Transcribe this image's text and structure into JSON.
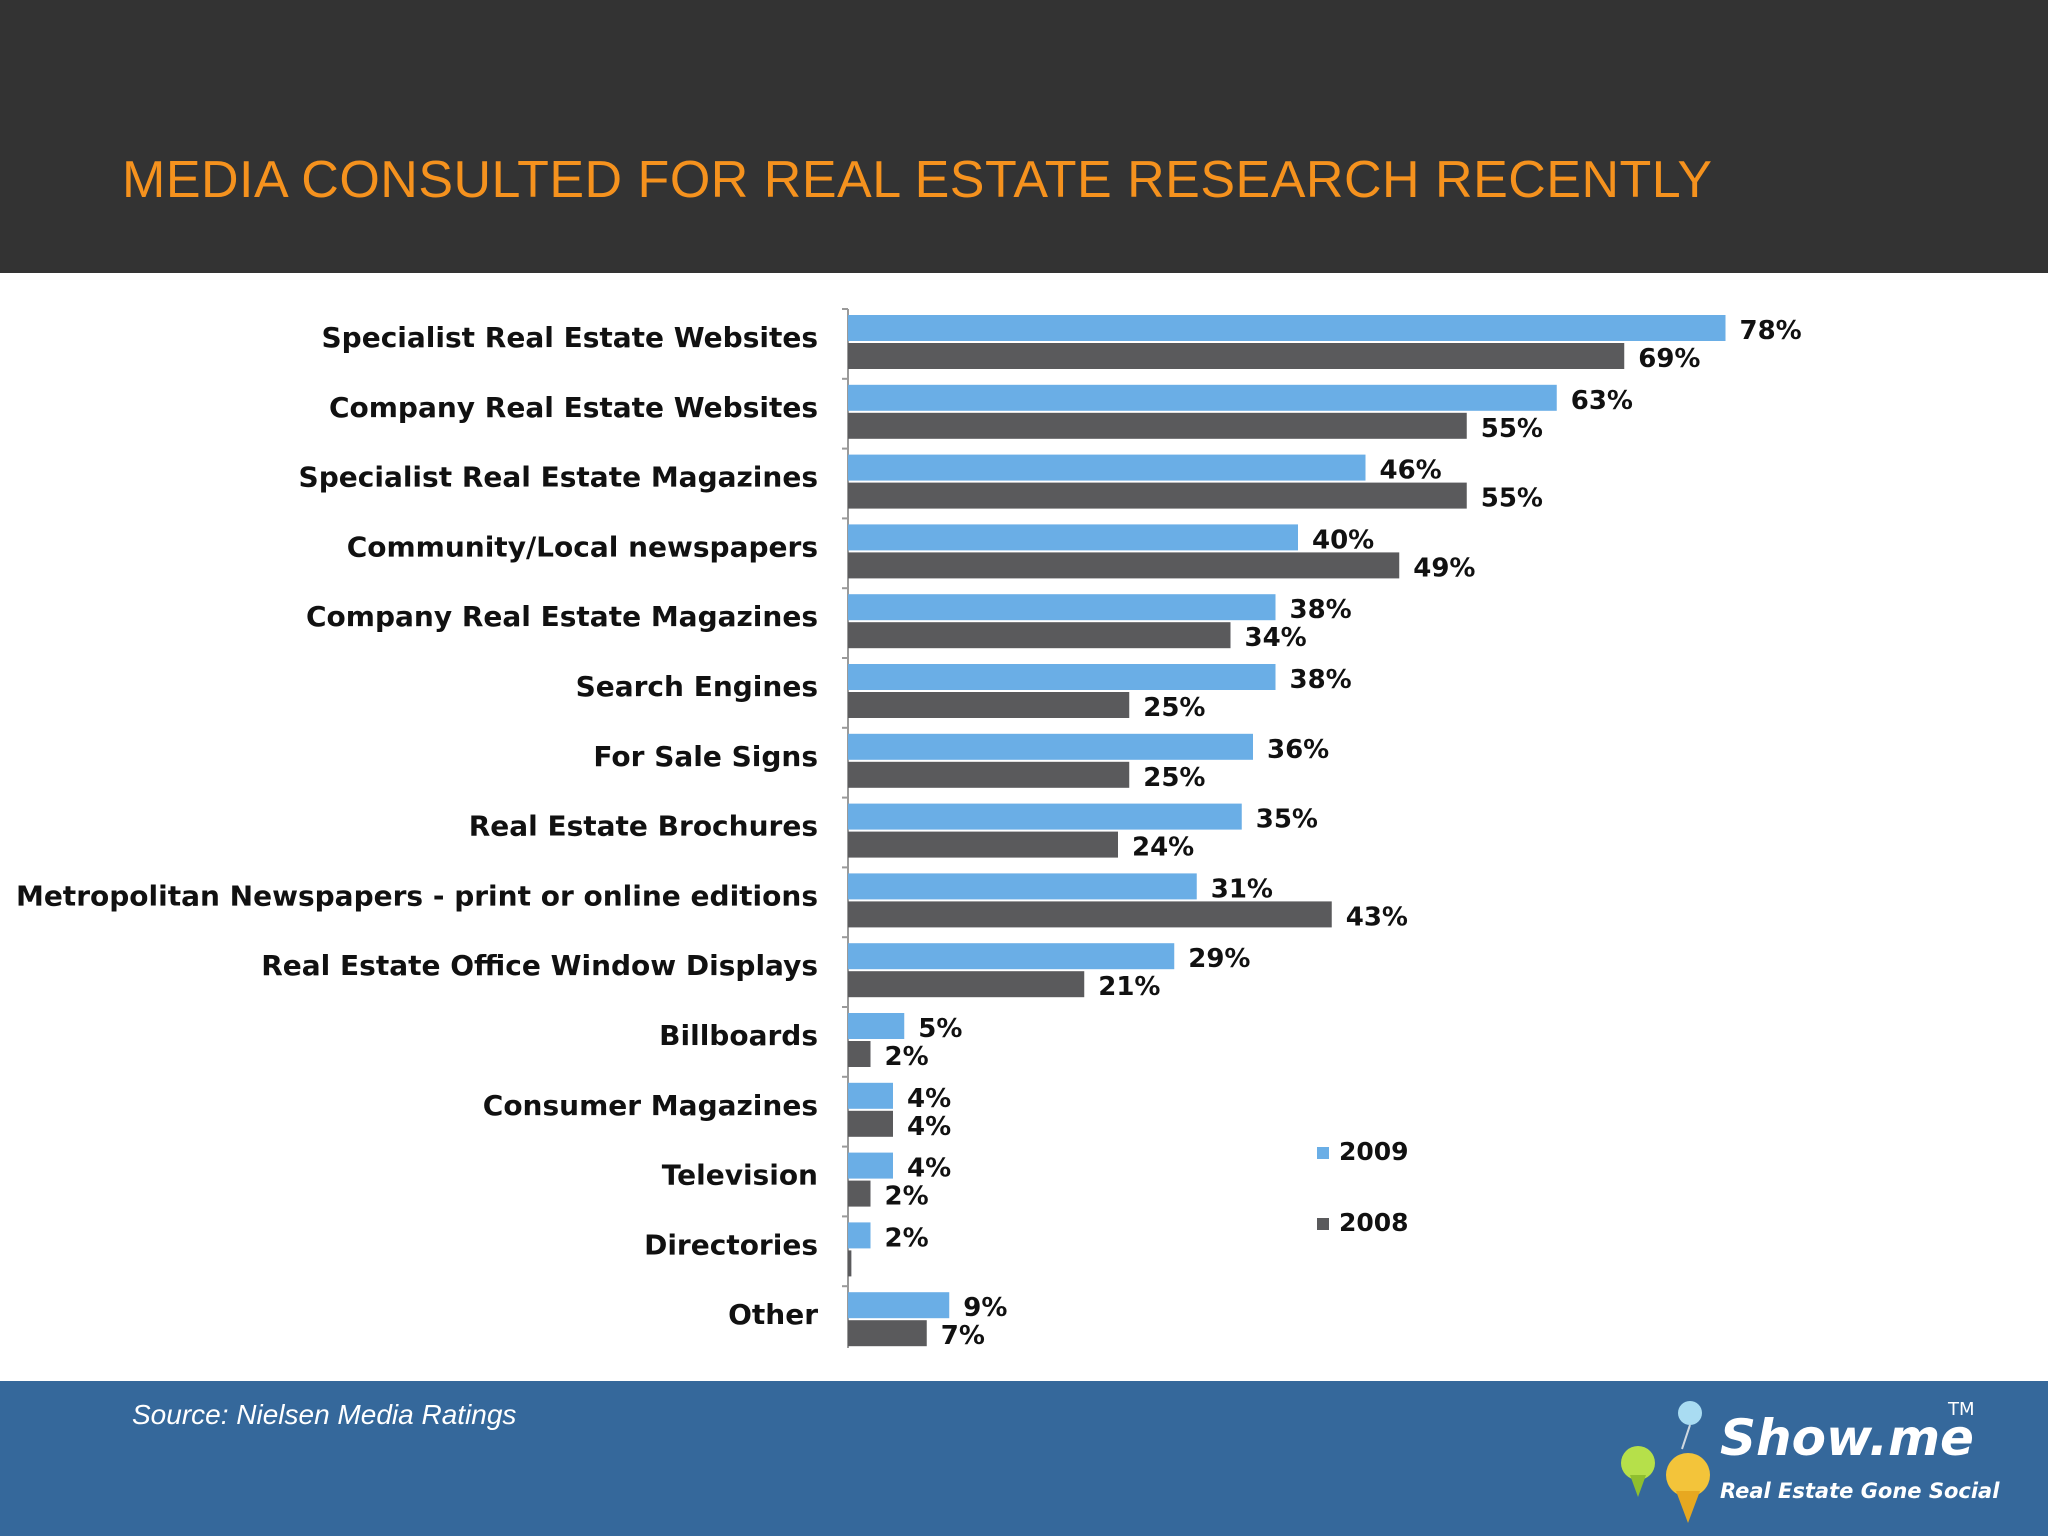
{
  "slide": {
    "title": "MEDIA CONSULTED FOR REAL ESTATE RESEARCH RECENTLY",
    "source": "Source: Nielsen Media Ratings"
  },
  "logo": {
    "name": "Show.me",
    "tagline": "Real Estate Gone Social",
    "trademark": "TM"
  },
  "colors": {
    "header_bg": "#333333",
    "title": "#f5921e",
    "footer_bg": "#35689b",
    "series_2009": "#6aaee6",
    "series_2008": "#5a5a5c"
  },
  "chart_data": {
    "type": "bar",
    "orientation": "horizontal",
    "categories": [
      "Specialist Real Estate Websites",
      "Company Real Estate Websites",
      "Specialist Real Estate Magazines",
      "Community/Local newspapers",
      "Company Real Estate Magazines",
      "Search Engines",
      "For Sale  Signs",
      "Real Estate Brochures",
      "Metropolitan Newspapers - print or online editions",
      "Real Estate Office  Window Displays",
      "Billboards",
      "Consumer Magazines",
      "Television",
      "Directories",
      "Other"
    ],
    "series": [
      {
        "name": "2009",
        "color": "#6aaee6",
        "values": [
          78,
          63,
          46,
          40,
          38,
          38,
          36,
          35,
          31,
          29,
          5,
          4,
          4,
          2,
          9
        ],
        "labels": [
          "78%",
          "63%",
          "46%",
          "40%",
          "38%",
          "38%",
          "36%",
          "35%",
          "31%",
          "29%",
          "5%",
          "4%",
          "4%",
          "2%",
          "9%"
        ]
      },
      {
        "name": "2008",
        "color": "#5a5a5c",
        "values": [
          69,
          55,
          55,
          49,
          34,
          25,
          25,
          24,
          43,
          21,
          2,
          4,
          2,
          0.3,
          7
        ],
        "labels": [
          "69%",
          "55%",
          "55%",
          "49%",
          "34%",
          "25%",
          "25%",
          "24%",
          "43%",
          "21%",
          "2%",
          "4%",
          "2%",
          "",
          "7%"
        ]
      }
    ],
    "legend": {
      "position": "lower-right",
      "entries": [
        "2009",
        "2008"
      ]
    },
    "xlim": [
      0,
      80
    ],
    "grid": false
  }
}
